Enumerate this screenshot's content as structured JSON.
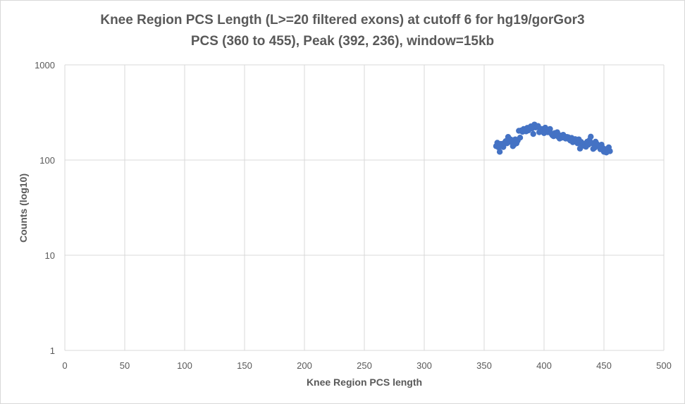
{
  "chart_data": {
    "type": "scatter",
    "title": "Knee Region PCS Length (L>=20 filtered exons) at cutoff 6 for hg19/gorGor3",
    "subtitle": "PCS (360 to 455), Peak (392, 236), window=15kb",
    "xlabel": "Knee Region PCS length",
    "ylabel": "Counts (log10)",
    "xlim": [
      0,
      500
    ],
    "ylim": [
      1,
      1000
    ],
    "y_scale": "log10",
    "x_ticks": [
      "0",
      "50",
      "100",
      "150",
      "200",
      "250",
      "300",
      "350",
      "400",
      "450",
      "500"
    ],
    "y_ticks": [
      "1",
      "10",
      "100",
      "1000"
    ],
    "grid": true,
    "legend": "none",
    "marker_color": "#4472C4",
    "x": [
      360,
      361,
      362,
      363,
      364,
      365,
      366,
      367,
      368,
      369,
      370,
      371,
      372,
      373,
      374,
      375,
      376,
      377,
      378,
      379,
      380,
      381,
      382,
      383,
      384,
      385,
      386,
      387,
      388,
      389,
      390,
      391,
      392,
      393,
      394,
      395,
      396,
      397,
      398,
      399,
      400,
      401,
      402,
      403,
      404,
      405,
      406,
      407,
      408,
      409,
      410,
      411,
      412,
      413,
      414,
      415,
      416,
      417,
      418,
      419,
      420,
      421,
      422,
      423,
      424,
      425,
      426,
      427,
      428,
      429,
      430,
      431,
      432,
      433,
      434,
      435,
      436,
      437,
      438,
      439,
      440,
      441,
      442,
      443,
      444,
      445,
      446,
      447,
      448,
      449,
      450,
      451,
      452,
      453,
      454,
      455
    ],
    "y": [
      140,
      152,
      136,
      122,
      148,
      142,
      137,
      152,
      158,
      150,
      175,
      155,
      165,
      160,
      140,
      145,
      165,
      150,
      160,
      203,
      172,
      205,
      198,
      212,
      210,
      200,
      218,
      205,
      214,
      226,
      215,
      188,
      236,
      220,
      224,
      228,
      196,
      205,
      212,
      198,
      192,
      219,
      204,
      196,
      208,
      212,
      190,
      182,
      178,
      192,
      186,
      196,
      175,
      168,
      181,
      172,
      184,
      176,
      168,
      175,
      174,
      165,
      160,
      171,
      154,
      162,
      166,
      158,
      150,
      165,
      132,
      155,
      142,
      148,
      140,
      138,
      156,
      145,
      162,
      176,
      150,
      131,
      134,
      156,
      148,
      140,
      138,
      130,
      145,
      134,
      122,
      130,
      120,
      128,
      136,
      124
    ]
  }
}
